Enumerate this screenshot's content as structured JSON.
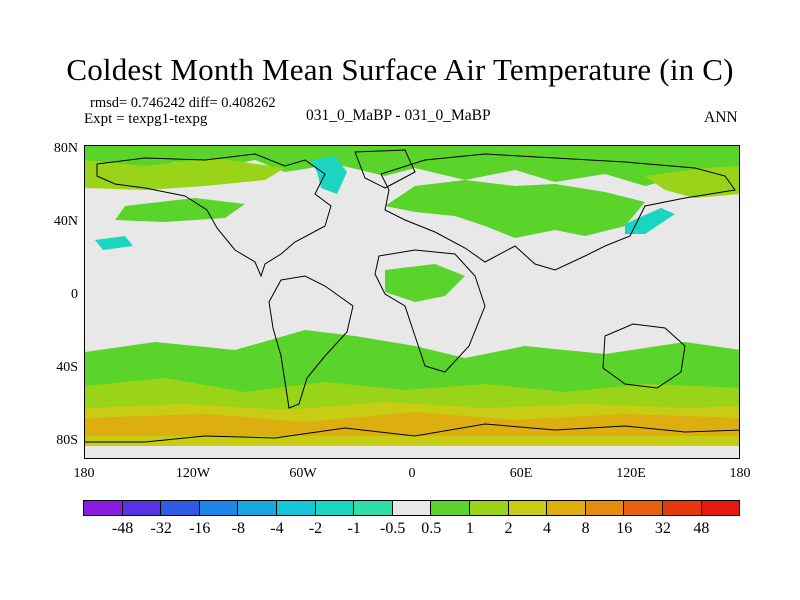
{
  "title": "Coldest Month Mean Surface Air Temperature (in C)",
  "stats": "rmsd= 0.746242 diff= 0.408262",
  "expt": "Expt = texpg1-texpg",
  "case": "031_0_MaBP - 031_0_MaBP",
  "season": "ANN",
  "lat_labels": [
    "80N",
    "40N",
    "0",
    "40S",
    "80S"
  ],
  "lon_labels": [
    "180",
    "120W",
    "60W",
    "0",
    "60E",
    "120E",
    "180"
  ],
  "colorbar": {
    "labels": [
      "-48",
      "-32",
      "-16",
      "-8",
      "-4",
      "-2",
      "-1",
      "-0.5",
      "0.5",
      "1",
      "2",
      "4",
      "8",
      "16",
      "32",
      "48"
    ],
    "colors": [
      "#8a1be0",
      "#5a32e6",
      "#2f5ae6",
      "#1e86e6",
      "#17a8e2",
      "#16c6d8",
      "#1ad6c0",
      "#2ee0a8",
      "#e8e8e8",
      "#5ad42a",
      "#9ad418",
      "#c8cc12",
      "#dcae10",
      "#e48c0e",
      "#e8620e",
      "#e8380e",
      "#e31a0d"
    ]
  },
  "palette": {
    "background": "#e8e8e8",
    "green": "#5ad42a",
    "lime": "#9ad418",
    "yellow": "#c8cc12",
    "gold": "#dcae10",
    "cyan": "#1ad6c0"
  }
}
